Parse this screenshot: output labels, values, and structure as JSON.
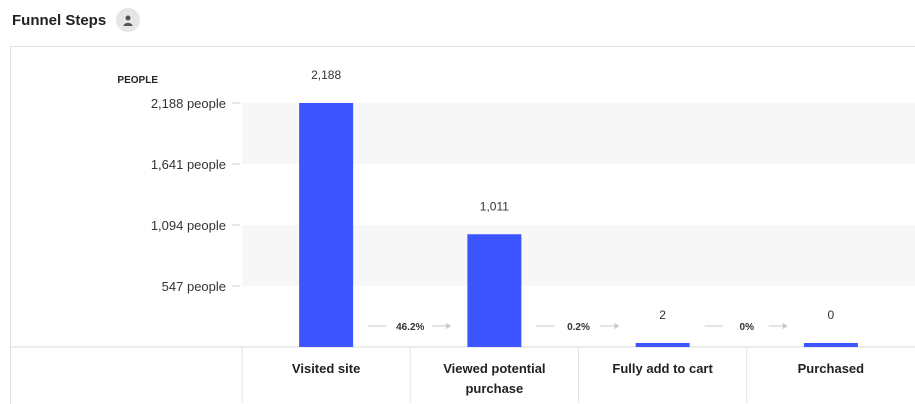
{
  "header": {
    "title": "Funnel Steps",
    "icon": "user-icon"
  },
  "chart_data": {
    "type": "bar",
    "ylabel": "PEOPLE",
    "ylim": [
      0,
      2188
    ],
    "yticks": [
      547,
      1094,
      1641,
      2188
    ],
    "ytick_labels": [
      "547 people",
      "1,094 people",
      "1,641 people",
      "2,188 people"
    ],
    "categories": [
      "Visited site",
      "Viewed potential purchase",
      "Fully add to cart",
      "Purchased"
    ],
    "category_lines": [
      [
        "Visited site"
      ],
      [
        "Viewed potential",
        "purchase"
      ],
      [
        "Fully add to cart"
      ],
      [
        "Purchased"
      ]
    ],
    "values": [
      2188,
      1011,
      2,
      0
    ],
    "value_labels": [
      "2,188",
      "1,011",
      "2",
      "0"
    ],
    "conversions": [
      "46.2%",
      "0.2%",
      "0%"
    ],
    "bar_color": "#3d55ff",
    "band_color": "#f7f7f7",
    "grid": true
  }
}
